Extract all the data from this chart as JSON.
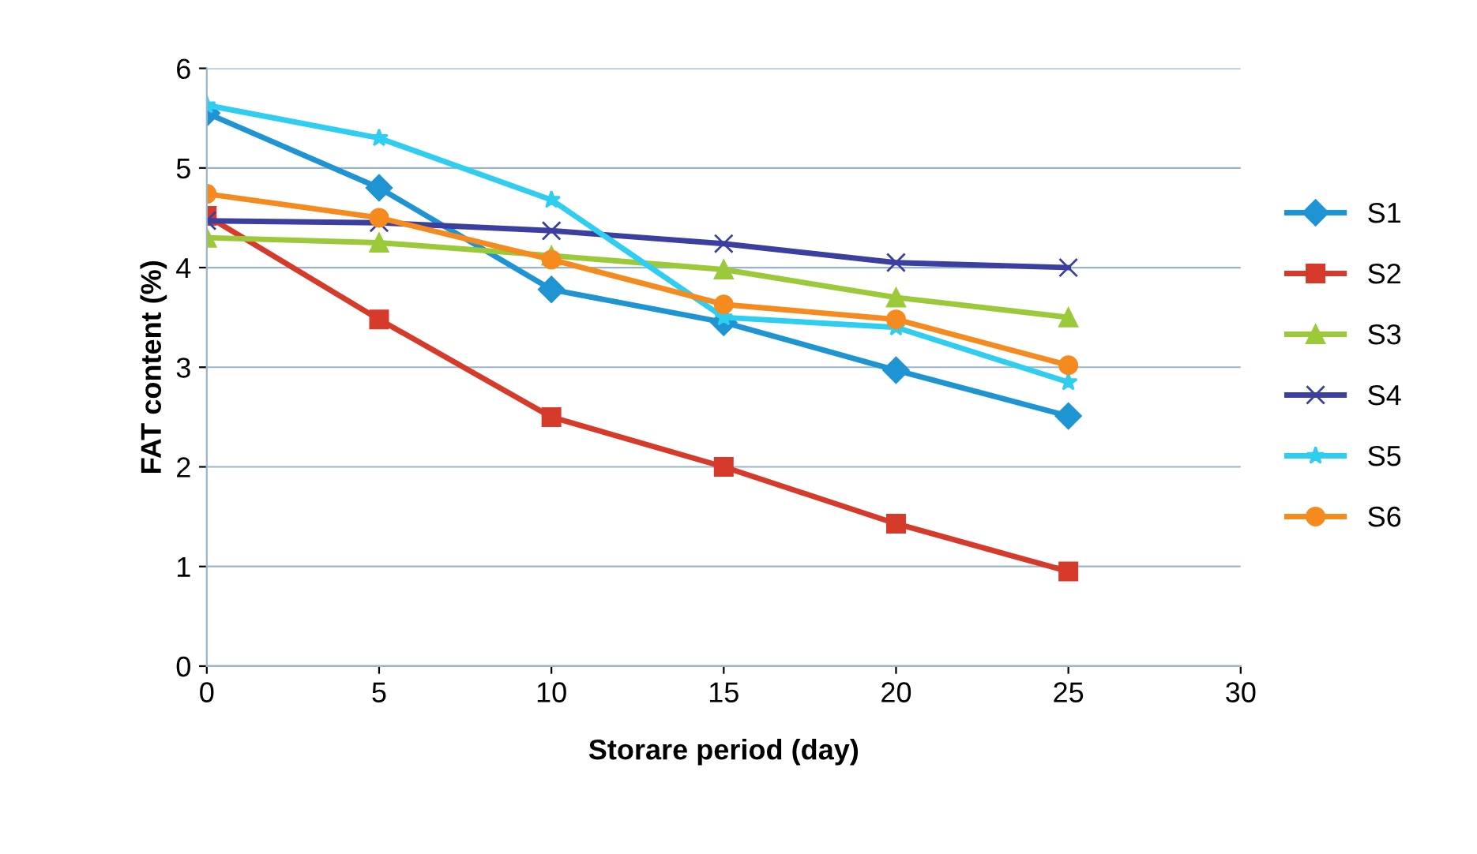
{
  "chart_data": {
    "type": "line",
    "xlabel": "Storare period (day)",
    "ylabel": "FAT content (%)",
    "x": [
      0,
      5,
      10,
      15,
      20,
      25
    ],
    "xlim": [
      0,
      30
    ],
    "xticks": [
      0,
      5,
      10,
      15,
      20,
      25,
      30
    ],
    "ylim": [
      0,
      6
    ],
    "yticks": [
      0,
      1,
      2,
      3,
      4,
      5,
      6
    ],
    "grid": "y",
    "legend": "right",
    "line_style": "solid",
    "series": [
      {
        "name": "S1",
        "color": "#1f94d2",
        "marker": "diamond",
        "values": [
          5.55,
          4.8,
          3.78,
          3.45,
          2.97,
          2.51
        ]
      },
      {
        "name": "S2",
        "color": "#d63a2b",
        "marker": "square",
        "values": [
          4.52,
          3.48,
          2.5,
          2.0,
          1.43,
          0.95
        ]
      },
      {
        "name": "S3",
        "color": "#9bc93a",
        "marker": "triangle",
        "values": [
          4.3,
          4.25,
          4.12,
          3.98,
          3.7,
          3.5
        ]
      },
      {
        "name": "S4",
        "color": "#3b3fa0",
        "marker": "cross",
        "values": [
          4.47,
          4.45,
          4.37,
          4.24,
          4.05,
          4.0
        ]
      },
      {
        "name": "S5",
        "color": "#2fcdf0",
        "marker": "star",
        "values": [
          5.63,
          5.3,
          4.68,
          3.5,
          3.4,
          2.85
        ]
      },
      {
        "name": "S6",
        "color": "#f58a1f",
        "marker": "circle",
        "values": [
          4.74,
          4.5,
          4.08,
          3.63,
          3.48,
          3.02
        ]
      }
    ]
  }
}
